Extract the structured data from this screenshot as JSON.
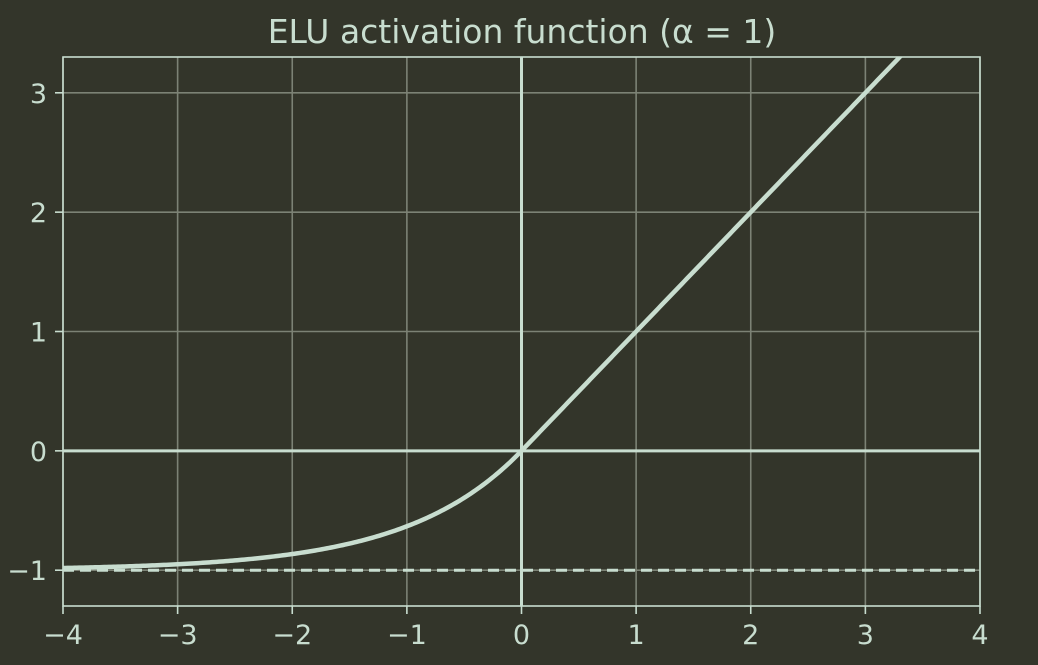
{
  "colors": {
    "background": "#33352a",
    "foreground": "#c8ddcf",
    "grid": "#7c8275"
  },
  "chart_data": {
    "type": "line",
    "title": "ELU activation function (α = 1)",
    "xlabel": "",
    "ylabel": "",
    "xlim": [
      -4,
      4
    ],
    "ylim": [
      -1.3,
      3.3
    ],
    "grid": true,
    "xticks": [
      -4,
      -3,
      -2,
      -1,
      0,
      1,
      2,
      3,
      4
    ],
    "xtick_labels": [
      "−4",
      "−3",
      "−2",
      "−1",
      "0",
      "1",
      "2",
      "3",
      "4"
    ],
    "yticks": [
      -1,
      0,
      1,
      2,
      3
    ],
    "ytick_labels": [
      "−1",
      "0",
      "1",
      "2",
      "3"
    ],
    "series": [
      {
        "function": "elu",
        "alpha": 1,
        "x": [
          -4,
          -3.5,
          -3,
          -2.5,
          -2,
          -1.5,
          -1,
          -0.5,
          0,
          1,
          2,
          3,
          3.3
        ],
        "y": [
          -0.98,
          -0.97,
          -0.95,
          -0.92,
          -0.86,
          -0.78,
          -0.63,
          -0.39,
          0,
          1,
          2,
          3,
          3.3
        ]
      }
    ],
    "reference_lines": [
      {
        "orientation": "horizontal",
        "value": 0,
        "style": "solid"
      },
      {
        "orientation": "vertical",
        "value": 0,
        "style": "solid"
      },
      {
        "orientation": "horizontal",
        "value": -1,
        "style": "dashed"
      }
    ]
  }
}
